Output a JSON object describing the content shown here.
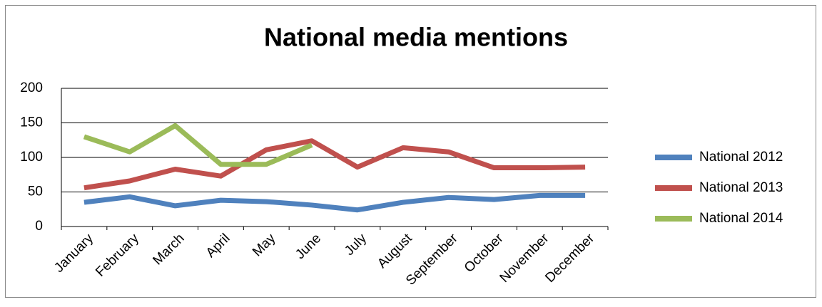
{
  "chart_data": {
    "type": "line",
    "title": "National media mentions",
    "categories": [
      "January",
      "February",
      "March",
      "April",
      "May",
      "June",
      "July",
      "August",
      "September",
      "October",
      "November",
      "December"
    ],
    "series": [
      {
        "name": "National 2012",
        "color": "#4f81bd",
        "values": [
          35,
          43,
          30,
          38,
          36,
          31,
          24,
          35,
          42,
          39,
          45,
          45
        ]
      },
      {
        "name": "National 2013",
        "color": "#c0504d",
        "values": [
          56,
          66,
          83,
          73,
          111,
          124,
          86,
          114,
          108,
          85,
          85,
          86
        ]
      },
      {
        "name": "National 2014",
        "color": "#9bbb59",
        "values": [
          130,
          108,
          146,
          90,
          90,
          118,
          null,
          null,
          null,
          null,
          null,
          null
        ]
      }
    ],
    "ylim": [
      0,
      200
    ],
    "yticks": [
      0,
      50,
      100,
      150,
      200
    ],
    "grid": true,
    "legend": "right"
  }
}
